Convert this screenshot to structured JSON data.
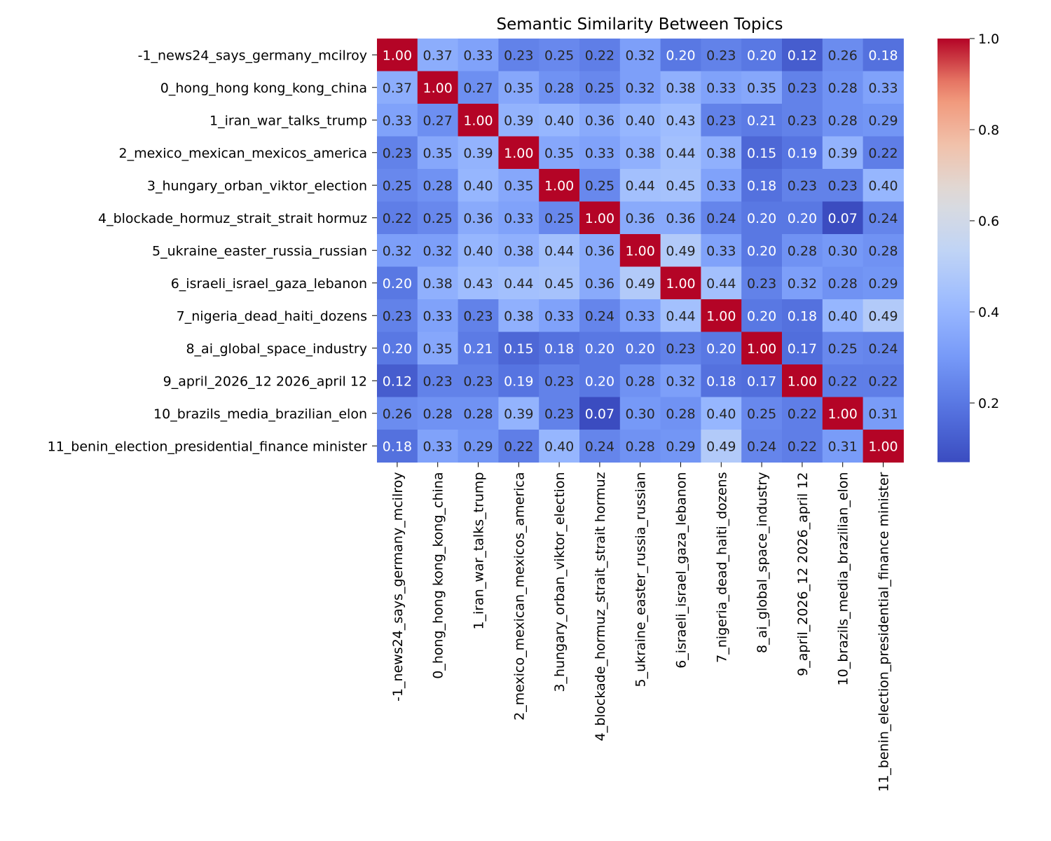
{
  "chart_data": {
    "type": "heatmap",
    "title": "Semantic Similarity Between Topics",
    "xlabel": "",
    "ylabel": "",
    "labels": [
      "-1_news24_says_germany_mcilroy",
      "0_hong_hong kong_kong_china",
      "1_iran_war_talks_trump",
      "2_mexico_mexican_mexicos_america",
      "3_hungary_orban_viktor_election",
      "4_blockade_hormuz_strait_strait hormuz",
      "5_ukraine_easter_russia_russian",
      "6_israeli_israel_gaza_lebanon",
      "7_nigeria_dead_haiti_dozens",
      "8_ai_global_space_industry",
      "9_april_2026_12 2026_april 12",
      "10_brazils_media_brazilian_elon",
      "11_benin_election_presidential_finance minister"
    ],
    "values": [
      [
        1.0,
        0.37,
        0.33,
        0.23,
        0.25,
        0.22,
        0.32,
        0.2,
        0.23,
        0.2,
        0.12,
        0.26,
        0.18
      ],
      [
        0.37,
        1.0,
        0.27,
        0.35,
        0.28,
        0.25,
        0.32,
        0.38,
        0.33,
        0.35,
        0.23,
        0.28,
        0.33
      ],
      [
        0.33,
        0.27,
        1.0,
        0.39,
        0.4,
        0.36,
        0.4,
        0.43,
        0.23,
        0.21,
        0.23,
        0.28,
        0.29
      ],
      [
        0.23,
        0.35,
        0.39,
        1.0,
        0.35,
        0.33,
        0.38,
        0.44,
        0.38,
        0.15,
        0.19,
        0.39,
        0.22
      ],
      [
        0.25,
        0.28,
        0.4,
        0.35,
        1.0,
        0.25,
        0.44,
        0.45,
        0.33,
        0.18,
        0.23,
        0.23,
        0.4
      ],
      [
        0.22,
        0.25,
        0.36,
        0.33,
        0.25,
        1.0,
        0.36,
        0.36,
        0.24,
        0.2,
        0.2,
        0.07,
        0.24
      ],
      [
        0.32,
        0.32,
        0.4,
        0.38,
        0.44,
        0.36,
        1.0,
        0.49,
        0.33,
        0.2,
        0.28,
        0.3,
        0.28
      ],
      [
        0.2,
        0.38,
        0.43,
        0.44,
        0.45,
        0.36,
        0.49,
        1.0,
        0.44,
        0.23,
        0.32,
        0.28,
        0.29
      ],
      [
        0.23,
        0.33,
        0.23,
        0.38,
        0.33,
        0.24,
        0.33,
        0.44,
        1.0,
        0.2,
        0.18,
        0.4,
        0.49
      ],
      [
        0.2,
        0.35,
        0.21,
        0.15,
        0.18,
        0.2,
        0.2,
        0.23,
        0.2,
        1.0,
        0.17,
        0.25,
        0.24
      ],
      [
        0.12,
        0.23,
        0.23,
        0.19,
        0.23,
        0.2,
        0.28,
        0.32,
        0.18,
        0.17,
        1.0,
        0.22,
        0.22
      ],
      [
        0.26,
        0.28,
        0.28,
        0.39,
        0.23,
        0.07,
        0.3,
        0.28,
        0.4,
        0.25,
        0.22,
        1.0,
        0.31
      ],
      [
        0.18,
        0.33,
        0.29,
        0.22,
        0.4,
        0.24,
        0.28,
        0.29,
        0.49,
        0.24,
        0.22,
        0.31,
        1.0
      ]
    ],
    "colormap": "coolwarm",
    "vmin": 0.07,
    "vmax": 1.0,
    "annotation_format": "0.00",
    "colorbar": {
      "ticks": [
        0.2,
        0.4,
        0.6,
        0.8,
        1.0
      ],
      "tick_labels": [
        "0.2",
        "0.4",
        "0.6",
        "0.8",
        "1.0"
      ]
    }
  }
}
